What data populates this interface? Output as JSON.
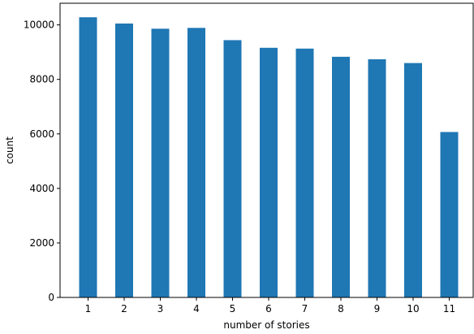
{
  "chart_data": {
    "type": "bar",
    "title": "",
    "xlabel": "number of stories",
    "ylabel": "count",
    "categories": [
      "1",
      "2",
      "3",
      "4",
      "5",
      "6",
      "7",
      "8",
      "9",
      "10",
      "11"
    ],
    "values": [
      10280,
      10050,
      9860,
      9890,
      9440,
      9160,
      9130,
      8830,
      8740,
      8600,
      6070
    ],
    "ylim": [
      0,
      10794
    ],
    "yticks": [
      0,
      2000,
      4000,
      6000,
      8000,
      10000
    ],
    "ytick_labels": [
      "0",
      "2000",
      "4000",
      "6000",
      "8000",
      "10000"
    ],
    "grid": false,
    "legend": "none",
    "bar_color": "#1f77b4"
  }
}
